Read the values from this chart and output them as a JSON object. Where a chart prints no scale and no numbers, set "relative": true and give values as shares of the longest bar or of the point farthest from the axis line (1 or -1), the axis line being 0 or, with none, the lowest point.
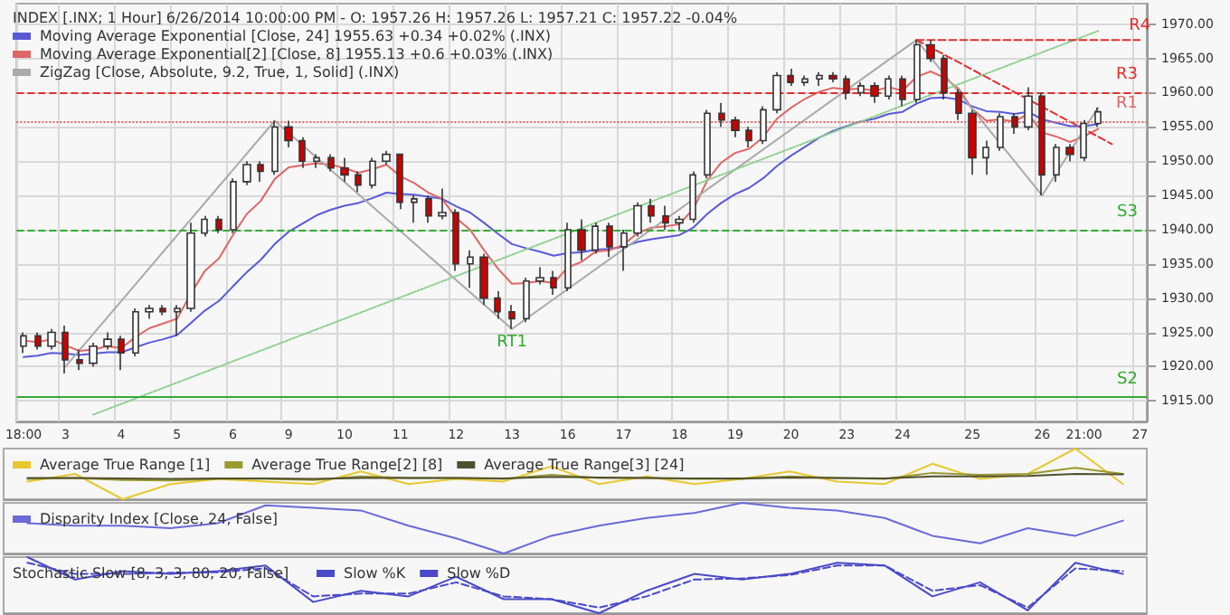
{
  "chart_data": [
    {
      "type": "candlestick",
      "title": "INDEX [.INX; 1 Hour] 6/26/2014 10:00:00 PM - O: 1957.26 H: 1957.26 L: 1957.21 C: 1957.22 -0.04%",
      "categories": [
        "18:00",
        null,
        null,
        "3",
        null,
        null,
        null,
        "4",
        null,
        null,
        null,
        "5",
        null,
        null,
        null,
        "6",
        null,
        null,
        null,
        "9",
        null,
        null,
        null,
        "10",
        null,
        null,
        null,
        "11",
        null,
        null,
        null,
        "12",
        null,
        null,
        null,
        "13",
        null,
        null,
        null,
        "16",
        null,
        null,
        null,
        "17",
        null,
        null,
        null,
        "18",
        null,
        null,
        null,
        "19",
        null,
        null,
        null,
        "20",
        null,
        null,
        null,
        "23",
        null,
        null,
        null,
        "24",
        null,
        null,
        null,
        null,
        "25",
        null,
        null,
        null,
        null,
        "26",
        null,
        null,
        "21:00",
        null,
        null,
        null,
        "27"
      ],
      "ohlc": [
        [
          1923,
          1925,
          1922,
          1924.5
        ],
        [
          1924.5,
          1925,
          1922.5,
          1923
        ],
        [
          1923,
          1925.5,
          1922.5,
          1925
        ],
        [
          1925,
          1926,
          1919,
          1921
        ],
        [
          1921,
          1922.5,
          1919.5,
          1920.5
        ],
        [
          1920.5,
          1923.5,
          1920,
          1923
        ],
        [
          1923,
          1925,
          1922.5,
          1924
        ],
        [
          1924,
          1924.5,
          1919.5,
          1922
        ],
        [
          1922,
          1928.5,
          1921.5,
          1928
        ],
        [
          1928,
          1929,
          1927,
          1928.5
        ],
        [
          1928.5,
          1929,
          1927.5,
          1928
        ],
        [
          1928,
          1929,
          1924.5,
          1928.5
        ],
        [
          1928.5,
          1941,
          1928,
          1939.5
        ],
        [
          1939.5,
          1942,
          1939,
          1941.5
        ],
        [
          1941.5,
          1942,
          1939.5,
          1940
        ],
        [
          1940,
          1947.5,
          1939.5,
          1947
        ],
        [
          1947,
          1950,
          1946.5,
          1949.5
        ],
        [
          1949.5,
          1950,
          1947,
          1948.5
        ],
        [
          1948.5,
          1955.9,
          1948,
          1955
        ],
        [
          1955,
          1955.9,
          1952,
          1953
        ],
        [
          1953,
          1953.5,
          1949,
          1950
        ],
        [
          1950,
          1951,
          1949,
          1950.5
        ],
        [
          1950.5,
          1951,
          1948.5,
          1949
        ],
        [
          1949,
          1950.5,
          1947,
          1948
        ],
        [
          1948,
          1948.5,
          1945.5,
          1946.5
        ],
        [
          1946.5,
          1950.5,
          1946,
          1950
        ],
        [
          1950,
          1951.5,
          1949.5,
          1951
        ],
        [
          1951,
          1951,
          1943,
          1944
        ],
        [
          1944,
          1945,
          1941,
          1944.5
        ],
        [
          1944.5,
          1945,
          1941,
          1942
        ],
        [
          1942,
          1946,
          1941.5,
          1942.5
        ],
        [
          1942.5,
          1943,
          1934,
          1935
        ],
        [
          1935,
          1937,
          1931.5,
          1936
        ],
        [
          1936,
          1936.5,
          1929,
          1930
        ],
        [
          1930,
          1931,
          1927,
          1928
        ],
        [
          1928,
          1929,
          1925.5,
          1927
        ],
        [
          1927,
          1933,
          1926.5,
          1932.5
        ],
        [
          1932.5,
          1934.5,
          1932,
          1933
        ],
        [
          1933,
          1934,
          1930.5,
          1931.5
        ],
        [
          1931.5,
          1941,
          1931,
          1940
        ],
        [
          1940,
          1941.5,
          1935.5,
          1937
        ],
        [
          1937,
          1941,
          1936.5,
          1940.5
        ],
        [
          1940.5,
          1941,
          1936,
          1937.5
        ],
        [
          1937.5,
          1940,
          1934,
          1939.5
        ],
        [
          1939.5,
          1944,
          1939,
          1943.5
        ],
        [
          1943.5,
          1944.5,
          1941,
          1942
        ],
        [
          1942,
          1943.5,
          1940,
          1941
        ],
        [
          1941,
          1942,
          1940,
          1941.5
        ],
        [
          1941.5,
          1948.5,
          1941,
          1948
        ],
        [
          1948,
          1957.5,
          1947.5,
          1957
        ],
        [
          1957,
          1958.5,
          1955,
          1956
        ],
        [
          1956,
          1956.5,
          1953.5,
          1954.5
        ],
        [
          1954.5,
          1955,
          1952,
          1953
        ],
        [
          1953,
          1958,
          1952.5,
          1957.5
        ],
        [
          1957.5,
          1963,
          1957,
          1962.5
        ],
        [
          1962.5,
          1963.5,
          1961,
          1961.5
        ],
        [
          1961.5,
          1962.5,
          1961,
          1962
        ],
        [
          1962,
          1963,
          1961,
          1962.5
        ],
        [
          1962.5,
          1963,
          1961.5,
          1962
        ],
        [
          1962,
          1962.5,
          1959,
          1960
        ],
        [
          1960,
          1961.5,
          1959.5,
          1961
        ],
        [
          1961,
          1961.5,
          1958.5,
          1959.5
        ],
        [
          1959.5,
          1962.5,
          1959,
          1962
        ],
        [
          1962,
          1962.5,
          1958,
          1959
        ],
        [
          1959,
          1967.7,
          1958.5,
          1967
        ],
        [
          1967,
          1967.7,
          1964.5,
          1965
        ],
        [
          1965,
          1965.5,
          1959,
          1960
        ],
        [
          1960,
          1960.5,
          1956,
          1957
        ],
        [
          1957,
          1957.5,
          1948,
          1950.5
        ],
        [
          1950.5,
          1953,
          1948,
          1952
        ],
        [
          1952,
          1957,
          1951.5,
          1956.5
        ],
        [
          1956.5,
          1957,
          1954,
          1955
        ],
        [
          1955,
          1960.8,
          1954.5,
          1959.5
        ],
        [
          1959.5,
          1960,
          1945,
          1948
        ],
        [
          1948,
          1952.5,
          1947,
          1952
        ],
        [
          1952,
          1952.5,
          1950,
          1951
        ],
        [
          1950.5,
          1956,
          1950,
          1955.5
        ],
        [
          1955.5,
          1957.8,
          1955,
          1957.2
        ],
        null,
        null,
        null
      ],
      "series": [
        {
          "type": "line",
          "name": "Moving Average Exponential [Close, 24] 1955.63 +0.34 +0.02% (.INX)",
          "color": "#5a5ad8",
          "values": [
            1921.4,
            1921.6,
            1922.0,
            1921.9,
            1921.7,
            1921.9,
            1922.1,
            1922.1,
            1922.8,
            1923.5,
            1924.0,
            1924.6,
            1926.4,
            1928.2,
            1929.6,
            1931.7,
            1933.8,
            1935.6,
            1937.9,
            1939.7,
            1940.9,
            1942.1,
            1942.9,
            1943.5,
            1943.9,
            1944.6,
            1945.4,
            1945.2,
            1945.1,
            1944.8,
            1944.5,
            1943.4,
            1942.5,
            1941.0,
            1939.4,
            1937.9,
            1937.3,
            1936.8,
            1936.2,
            1936.6,
            1936.7,
            1937.1,
            1937.2,
            1937.5,
            1938.2,
            1938.6,
            1938.9,
            1939.2,
            1940.3,
            1942.3,
            1943.9,
            1945.2,
            1946.1,
            1947.5,
            1949.3,
            1950.8,
            1952.1,
            1953.4,
            1954.4,
            1955.1,
            1955.8,
            1956.2,
            1956.9,
            1957.2,
            1958.4,
            1959.2,
            1959.3,
            1959.0,
            1958.0,
            1957.3,
            1957.2,
            1956.9,
            1957.2,
            1956.1,
            1955.6,
            1955.1,
            1955.1,
            1955.4,
            null,
            null,
            null
          ]
        },
        {
          "type": "line",
          "name": "Moving Average Exponential[2] [Close, 8] 1955.13 +0.6 +0.03% (.INX)",
          "color": "#e06666",
          "values": [
            1923.8,
            1923.6,
            1924.0,
            1923.1,
            1922.3,
            1922.5,
            1923.0,
            1922.7,
            1924.3,
            1925.6,
            1926.3,
            1927.0,
            1930.7,
            1934.0,
            1935.8,
            1939.2,
            1942.3,
            1944.2,
            1947.4,
            1949.1,
            1949.4,
            1949.7,
            1949.5,
            1949.0,
            1948.3,
            1948.8,
            1949.5,
            1947.8,
            1946.8,
            1945.4,
            1944.5,
            1941.7,
            1940.0,
            1937.0,
            1934.3,
            1932.1,
            1932.2,
            1932.5,
            1932.2,
            1934.5,
            1935.3,
            1936.8,
            1937.0,
            1937.8,
            1939.5,
            1940.3,
            1940.5,
            1940.8,
            1943.0,
            1947.2,
            1949.8,
            1951.2,
            1951.8,
            1953.5,
            1956.2,
            1957.8,
            1959.1,
            1960.1,
            1960.7,
            1960.5,
            1960.6,
            1960.3,
            1960.8,
            1960.3,
            1962.3,
            1963.1,
            1962.2,
            1960.6,
            1957.6,
            1955.9,
            1956.1,
            1955.8,
            1956.9,
            1954.2,
            1953.6,
            1952.8,
            1953.6,
            1954.7,
            null,
            null,
            null
          ]
        },
        {
          "type": "line",
          "name": "ZigZag [Close, Absolute, 9.2, True, 1, Solid] (.INX)",
          "color": "#aaaaaa",
          "values": [
            null,
            null,
            null,
            1920,
            null,
            null,
            null,
            null,
            null,
            null,
            null,
            null,
            null,
            null,
            null,
            null,
            null,
            null,
            1955.9,
            null,
            null,
            null,
            null,
            null,
            null,
            null,
            null,
            null,
            null,
            null,
            null,
            null,
            null,
            null,
            null,
            1925.5,
            null,
            null,
            null,
            null,
            null,
            null,
            null,
            null,
            null,
            null,
            null,
            null,
            null,
            null,
            null,
            null,
            null,
            null,
            null,
            null,
            null,
            null,
            null,
            null,
            null,
            null,
            null,
            null,
            1967.7,
            null,
            null,
            null,
            null,
            null,
            null,
            null,
            null,
            1945,
            null,
            null,
            null,
            1957.8,
            null,
            null,
            null
          ]
        },
        {
          "type": "line",
          "color": "#8fcf8f",
          "line_style": "dotted",
          "values": [
            null,
            null,
            null,
            null,
            null,
            1913,
            null,
            null,
            null,
            null,
            null,
            null,
            null,
            null,
            null,
            null,
            null,
            null,
            null,
            null,
            null,
            null,
            null,
            null,
            null,
            null,
            null,
            null,
            null,
            null,
            null,
            null,
            null,
            null,
            null,
            null,
            null,
            null,
            null,
            null,
            null,
            null,
            null,
            null,
            null,
            null,
            null,
            null,
            null,
            null,
            null,
            null,
            null,
            null,
            null,
            null,
            null,
            null,
            null,
            null,
            null,
            null,
            null,
            null,
            null,
            null,
            null,
            null,
            null,
            null,
            null,
            null,
            null,
            null,
            null,
            null,
            null,
            1969,
            null,
            null,
            null
          ]
        },
        {
          "type": "line",
          "color": "#e03030",
          "line_style": "dashed",
          "values": [
            null,
            null,
            null,
            null,
            null,
            null,
            null,
            null,
            null,
            null,
            null,
            null,
            null,
            null,
            null,
            null,
            null,
            null,
            null,
            null,
            null,
            null,
            null,
            null,
            null,
            null,
            null,
            null,
            null,
            null,
            null,
            null,
            null,
            null,
            null,
            null,
            null,
            null,
            null,
            null,
            null,
            null,
            null,
            null,
            null,
            null,
            null,
            null,
            null,
            null,
            null,
            null,
            null,
            null,
            null,
            null,
            null,
            null,
            null,
            null,
            null,
            null,
            null,
            null,
            1967.7,
            null,
            null,
            null,
            null,
            null,
            null,
            null,
            null,
            null,
            null,
            null,
            null,
            null,
            1952.5,
            null,
            null
          ]
        },
        {
          "type": "line",
          "color": "#e03030",
          "line_style": "dashed",
          "values": [
            null,
            null,
            null,
            null,
            null,
            null,
            null,
            null,
            null,
            null,
            null,
            null,
            null,
            null,
            null,
            null,
            null,
            null,
            null,
            null,
            null,
            null,
            null,
            null,
            null,
            null,
            null,
            null,
            null,
            null,
            null,
            null,
            null,
            null,
            null,
            null,
            null,
            null,
            null,
            null,
            null,
            null,
            null,
            null,
            null,
            null,
            null,
            null,
            null,
            null,
            null,
            null,
            null,
            null,
            null,
            null,
            null,
            null,
            null,
            null,
            null,
            null,
            null,
            null,
            1967.7,
            1967.7,
            1967.7,
            1967.7,
            1967.7,
            1967.7,
            1967.7,
            1967.7,
            1967.7,
            1967.7,
            1967.7,
            1967.7,
            1967.7,
            1967.7,
            1967.7,
            1967.7,
            1967.7
          ]
        }
      ],
      "ylim": [
        1912,
        1973
      ],
      "yticks": [
        {
          "value": 1915,
          "label": "1915.00"
        },
        {
          "value": 1920,
          "label": "1920.00"
        },
        {
          "value": 1925,
          "label": "1925.00"
        },
        {
          "value": 1930,
          "label": "1930.00"
        },
        {
          "value": 1935,
          "label": "1935.00"
        },
        {
          "value": 1940,
          "label": "1940.00"
        },
        {
          "value": 1945,
          "label": "1945.00"
        },
        {
          "value": 1950,
          "label": "1950.00"
        },
        {
          "value": 1955,
          "label": "1955.00"
        },
        {
          "value": 1960,
          "label": "1960.00"
        },
        {
          "value": 1965,
          "label": "1965.00"
        },
        {
          "value": 1970,
          "label": "1970.00"
        }
      ],
      "ref_lines": [
        {
          "axis": "y",
          "value": 1960,
          "label": "R3",
          "color": "#e03030",
          "line_style": "dashed"
        },
        {
          "axis": "y",
          "value": 1955.9,
          "label": "R1",
          "color": "#e06666",
          "line_style": "dotted"
        },
        {
          "axis": "y",
          "value": 1940,
          "label": "S3",
          "color": "#33aa33",
          "line_style": "dashed"
        },
        {
          "axis": "y",
          "value": 1915.5,
          "label": "S2",
          "color": "#33aa33",
          "line_style": "solid"
        }
      ],
      "annotations": [
        {
          "text": "RT1",
          "x": "13",
          "y": 1925.5
        },
        {
          "text": "R4",
          "x": "27",
          "y": 1967.7
        }
      ],
      "grid": true,
      "legend": "top left"
    },
    {
      "type": "line",
      "relative": true,
      "tick_labels": false,
      "legend": "top left",
      "categories": [
        null,
        null,
        null,
        null,
        null,
        null,
        null,
        null,
        null,
        null,
        null,
        null,
        null,
        null,
        null,
        null,
        null,
        null,
        null,
        null,
        null,
        null,
        null,
        null
      ],
      "series": [
        {
          "name": "Average True Range [1]",
          "color": "#e8c830",
          "values": [
            0.35,
            0.5,
            0,
            0.3,
            0.4,
            0.35,
            0.3,
            0.55,
            0.3,
            0.4,
            0.35,
            0.65,
            0.3,
            0.45,
            0.3,
            0.4,
            0.55,
            0.35,
            0.3,
            0.7,
            0.4,
            0.5,
            1,
            0.3
          ]
        },
        {
          "name": "Average True Range[2] [8]",
          "color": "#9a9a30",
          "values": [
            0.4,
            0.42,
            0.38,
            0.37,
            0.4,
            0.4,
            0.38,
            0.45,
            0.42,
            0.42,
            0.4,
            0.48,
            0.42,
            0.42,
            0.4,
            0.4,
            0.45,
            0.42,
            0.4,
            0.52,
            0.48,
            0.5,
            0.62,
            0.5
          ]
        },
        {
          "name": "Average True Range[3] [24]",
          "color": "#505030",
          "values": [
            0.42,
            0.42,
            0.41,
            0.4,
            0.41,
            0.41,
            0.4,
            0.42,
            0.42,
            0.42,
            0.41,
            0.44,
            0.43,
            0.42,
            0.41,
            0.41,
            0.43,
            0.42,
            0.41,
            0.45,
            0.45,
            0.46,
            0.5,
            0.49
          ]
        }
      ]
    },
    {
      "type": "line",
      "relative": true,
      "tick_labels": false,
      "legend": "top left",
      "categories": [
        null,
        null,
        null,
        null,
        null,
        null,
        null,
        null,
        null,
        null,
        null,
        null,
        null,
        null,
        null,
        null,
        null,
        null,
        null,
        null,
        null,
        null,
        null,
        null
      ],
      "series": [
        {
          "name": "Disparity Index [Close, 24, False]",
          "color": "#6a6ad8",
          "values": [
            0.6,
            0.55,
            0.55,
            0.5,
            0.6,
            0.95,
            0.9,
            0.85,
            0.55,
            0.3,
            0,
            0.35,
            0.55,
            0.7,
            0.8,
            1,
            0.9,
            0.85,
            0.7,
            0.35,
            0.2,
            0.5,
            0.35,
            0.65
          ]
        }
      ]
    },
    {
      "type": "line",
      "relative": true,
      "tick_labels": false,
      "legend": "top left",
      "title": "Stochastic Slow [8, 3, 3, 80, 20, False]",
      "categories": [
        null,
        null,
        null,
        null,
        null,
        null,
        null,
        null,
        null,
        null,
        null,
        null,
        null,
        null,
        null,
        null,
        null,
        null,
        null,
        null,
        null,
        null,
        null,
        null
      ],
      "series": [
        {
          "name": "Slow %K",
          "color": "#4a4ac8",
          "values": [
            1,
            0.6,
            0.75,
            0.7,
            0.75,
            0.85,
            0.2,
            0.4,
            0.3,
            0.65,
            0.25,
            0.25,
            0,
            0.4,
            0.7,
            0.6,
            0.7,
            0.9,
            0.85,
            0.3,
            0.55,
            0.05,
            0.9,
            0.7
          ]
        },
        {
          "name": "Slow %D",
          "color": "#4a4ac8",
          "line_style": "dashed",
          "values": [
            0.9,
            0.7,
            0.7,
            0.72,
            0.73,
            0.8,
            0.3,
            0.35,
            0.35,
            0.55,
            0.3,
            0.25,
            0.1,
            0.3,
            0.6,
            0.62,
            0.68,
            0.85,
            0.85,
            0.4,
            0.5,
            0.1,
            0.8,
            0.75
          ]
        }
      ]
    }
  ]
}
